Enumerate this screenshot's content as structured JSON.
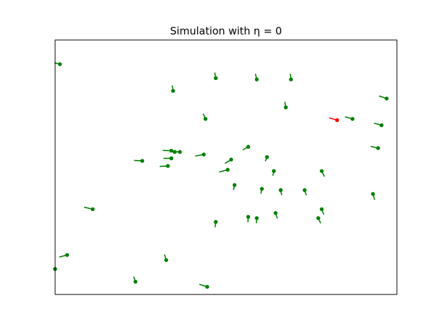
{
  "chart_data": {
    "type": "scatter",
    "title": "Simulation with η = 0",
    "xlabel": "",
    "ylabel": "",
    "xlim": [
      0,
      100
    ],
    "ylim": [
      0,
      100
    ],
    "grid": false,
    "axes_ticks": false,
    "colors": {
      "agent": "#008000",
      "highlight": "#ff0000",
      "frame": "#000000"
    },
    "points": [
      {
        "x": 1.4,
        "y": 90.5,
        "tx": -1.6,
        "ty": 0.5
      },
      {
        "x": 34.5,
        "y": 80.0,
        "tx": -0.2,
        "ty": 2.2
      },
      {
        "x": 47.0,
        "y": 85.0,
        "tx": -0.3,
        "ty": 2.2
      },
      {
        "x": 59.0,
        "y": 84.5,
        "tx": -0.4,
        "ty": 2.2
      },
      {
        "x": 69.0,
        "y": 84.5,
        "tx": -0.2,
        "ty": 2.2
      },
      {
        "x": 97.0,
        "y": 77.0,
        "tx": -2.2,
        "ty": 1.0
      },
      {
        "x": 44.0,
        "y": 69.0,
        "tx": -0.7,
        "ty": 2.0
      },
      {
        "x": 67.5,
        "y": 73.5,
        "tx": -0.3,
        "ty": 2.2
      },
      {
        "x": 87.0,
        "y": 69.0,
        "tx": -2.2,
        "ty": 0.8
      },
      {
        "x": 95.5,
        "y": 66.5,
        "tx": -2.2,
        "ty": 0.8
      },
      {
        "x": 25.5,
        "y": 52.5,
        "tx": -2.4,
        "ty": 0.2
      },
      {
        "x": 34.0,
        "y": 56.5,
        "tx": -2.5,
        "ty": 0.1
      },
      {
        "x": 35.0,
        "y": 56.0,
        "tx": -1.4,
        "ty": 0.2
      },
      {
        "x": 36.5,
        "y": 56.0,
        "tx": -2.5,
        "ty": 0.1
      },
      {
        "x": 34.0,
        "y": 53.5,
        "tx": -2.3,
        "ty": 0.0
      },
      {
        "x": 33.0,
        "y": 50.5,
        "tx": -2.4,
        "ty": -0.2
      },
      {
        "x": 43.5,
        "y": 55.0,
        "tx": -2.5,
        "ty": -0.6
      },
      {
        "x": 56.5,
        "y": 58.0,
        "tx": -1.6,
        "ty": -1.2
      },
      {
        "x": 50.5,
        "y": 49.0,
        "tx": -2.5,
        "ty": -0.9
      },
      {
        "x": 51.5,
        "y": 53.0,
        "tx": -1.8,
        "ty": -1.5
      },
      {
        "x": 62.0,
        "y": 54.0,
        "tx": -0.5,
        "ty": -1.7
      },
      {
        "x": 64.0,
        "y": 48.5,
        "tx": -0.3,
        "ty": -1.8
      },
      {
        "x": 78.0,
        "y": 48.5,
        "tx": 0.8,
        "ty": -2.2
      },
      {
        "x": 94.5,
        "y": 57.5,
        "tx": -2.2,
        "ty": 0.7
      },
      {
        "x": 52.5,
        "y": 43.0,
        "tx": -0.3,
        "ty": -1.9
      },
      {
        "x": 60.5,
        "y": 41.5,
        "tx": -0.3,
        "ty": -1.9
      },
      {
        "x": 66.0,
        "y": 41.0,
        "tx": 0.3,
        "ty": -2.0
      },
      {
        "x": 73.0,
        "y": 41.0,
        "tx": 0.5,
        "ty": -2.0
      },
      {
        "x": 93.0,
        "y": 39.5,
        "tx": 0.5,
        "ty": -2.3
      },
      {
        "x": 11.0,
        "y": 33.5,
        "tx": -2.5,
        "ty": 0.8
      },
      {
        "x": 47.0,
        "y": 28.5,
        "tx": -0.2,
        "ty": -2.1
      },
      {
        "x": 56.5,
        "y": 30.5,
        "tx": -0.1,
        "ty": -2.1
      },
      {
        "x": 59.0,
        "y": 30.0,
        "tx": -0.1,
        "ty": -2.0
      },
      {
        "x": 64.5,
        "y": 32.0,
        "tx": 0.5,
        "ty": -2.1
      },
      {
        "x": 78.0,
        "y": 33.5,
        "tx": 0.6,
        "ty": -2.1
      },
      {
        "x": 77.0,
        "y": 30.0,
        "tx": 0.7,
        "ty": -2.0
      },
      {
        "x": 3.5,
        "y": 15.5,
        "tx": -2.3,
        "ty": -0.8
      },
      {
        "x": 32.5,
        "y": 13.5,
        "tx": -0.5,
        "ty": 2.2
      },
      {
        "x": 0.0,
        "y": 10.0,
        "tx": -0.6,
        "ty": 0.2
      },
      {
        "x": 23.5,
        "y": 5.0,
        "tx": -0.5,
        "ty": 2.0
      },
      {
        "x": 44.5,
        "y": 3.0,
        "tx": -2.3,
        "ty": 1.0
      }
    ],
    "highlight_points": [
      {
        "x": 82.5,
        "y": 68.5,
        "tx": -2.3,
        "ty": 0.9
      }
    ]
  }
}
